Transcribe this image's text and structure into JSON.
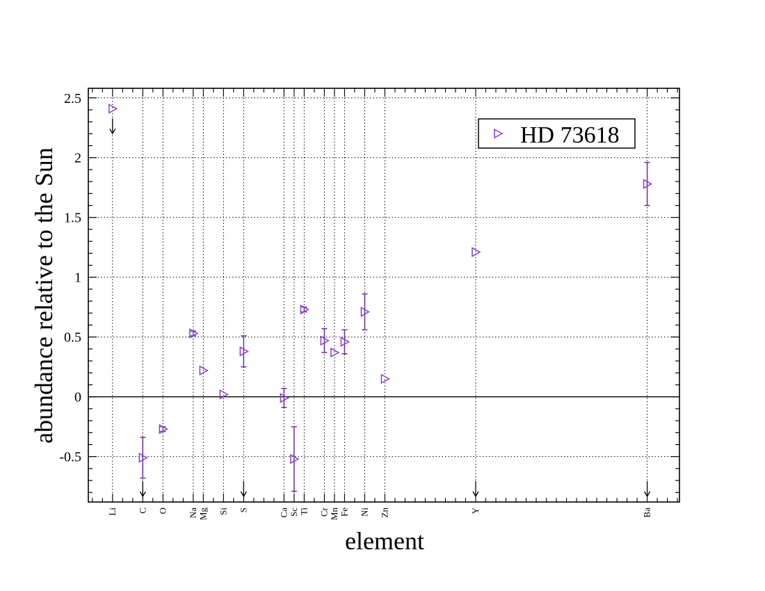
{
  "chart_data": {
    "type": "scatter",
    "title": "",
    "xlabel": "element",
    "ylabel": "abundance relative to the Sun",
    "ylim": [
      -0.88,
      2.58
    ],
    "y_ticks": [
      -0.5,
      0,
      0.5,
      1,
      1.5,
      2,
      2.5
    ],
    "y_tick_labels": [
      "-0.5",
      "0",
      "0.5",
      "1",
      "1.5",
      "2",
      "2.5"
    ],
    "grid": true,
    "zero_line": true,
    "legend": {
      "position": "top-right",
      "entries": [
        "HD 73618"
      ]
    },
    "colors": {
      "series": "#8a3fc7",
      "errorbar": "#6b2a9e",
      "grid": "#000000"
    },
    "marker": "triangle-right",
    "elements": [
      {
        "label": "Li",
        "Z": 3
      },
      {
        "label": "C",
        "Z": 6
      },
      {
        "label": "O",
        "Z": 8
      },
      {
        "label": "Na",
        "Z": 11
      },
      {
        "label": "Mg",
        "Z": 12
      },
      {
        "label": "Si",
        "Z": 14
      },
      {
        "label": "S",
        "Z": 16
      },
      {
        "label": "Ca",
        "Z": 20
      },
      {
        "label": "Sc",
        "Z": 21
      },
      {
        "label": "Ti",
        "Z": 22
      },
      {
        "label": "Cr",
        "Z": 24
      },
      {
        "label": "Mn",
        "Z": 25
      },
      {
        "label": "Fe",
        "Z": 26
      },
      {
        "label": "Ni",
        "Z": 28
      },
      {
        "label": "Zn",
        "Z": 30
      },
      {
        "label": "Y",
        "Z": 39
      },
      {
        "label": "Ba",
        "Z": 56
      }
    ],
    "series": [
      {
        "name": "HD 73618",
        "points": [
          {
            "element": "Li",
            "Z": 3,
            "y": 2.41,
            "err": 0,
            "upper_limit": true
          },
          {
            "element": "C",
            "Z": 6,
            "y": -0.51,
            "err": 0.17,
            "upper_limit": false
          },
          {
            "element": "O",
            "Z": 8,
            "y": -0.27,
            "err": 0.02,
            "upper_limit": false
          },
          {
            "element": "Na",
            "Z": 11,
            "y": 0.53,
            "err": 0.02,
            "upper_limit": false
          },
          {
            "element": "Mg",
            "Z": 12,
            "y": 0.22,
            "err": 0,
            "upper_limit": false
          },
          {
            "element": "Si",
            "Z": 14,
            "y": 0.02,
            "err": 0,
            "upper_limit": false
          },
          {
            "element": "S",
            "Z": 16,
            "y": 0.38,
            "err": 0.13,
            "upper_limit": false
          },
          {
            "element": "Ca",
            "Z": 20,
            "y": -0.01,
            "err": 0.08,
            "upper_limit": false
          },
          {
            "element": "Sc",
            "Z": 21,
            "y": -0.52,
            "err": 0.27,
            "upper_limit": false
          },
          {
            "element": "Ti",
            "Z": 22,
            "y": 0.73,
            "err": 0.02,
            "upper_limit": false
          },
          {
            "element": "Cr",
            "Z": 24,
            "y": 0.47,
            "err": 0.1,
            "upper_limit": false
          },
          {
            "element": "Mn",
            "Z": 25,
            "y": 0.37,
            "err": 0,
            "upper_limit": false
          },
          {
            "element": "Fe",
            "Z": 26,
            "y": 0.46,
            "err": 0.1,
            "upper_limit": false
          },
          {
            "element": "Ni",
            "Z": 28,
            "y": 0.71,
            "err": 0.15,
            "upper_limit": false
          },
          {
            "element": "Zn",
            "Z": 30,
            "y": 0.15,
            "err": 0,
            "upper_limit": false
          },
          {
            "element": "Y",
            "Z": 39,
            "y": 1.21,
            "err": 0,
            "upper_limit": false
          },
          {
            "element": "Ba",
            "Z": 56,
            "y": 1.78,
            "err": 0.18,
            "upper_limit": false
          }
        ]
      }
    ],
    "upper_limit_arrows_at_axis": [
      "C",
      "S",
      "Y",
      "Ba"
    ]
  }
}
